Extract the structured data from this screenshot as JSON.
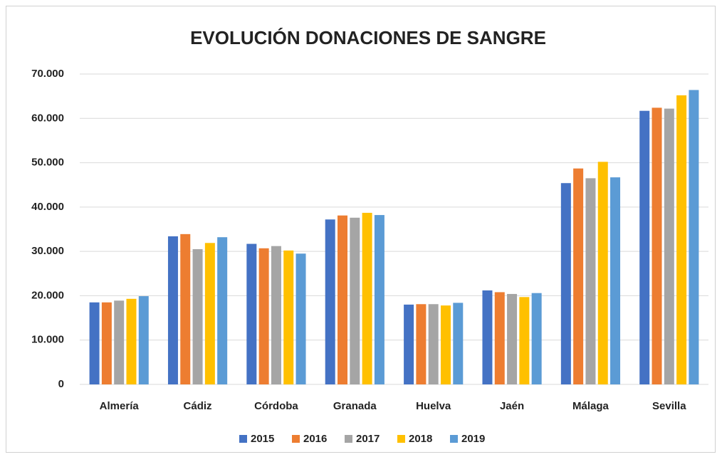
{
  "chart_data": {
    "type": "bar",
    "title": "EVOLUCIÓN DONACIONES DE SANGRE",
    "categories": [
      "Almería",
      "Cádiz",
      "Córdoba",
      "Granada",
      "Huelva",
      "Jaén",
      "Málaga",
      "Sevilla"
    ],
    "series": [
      {
        "name": "2015",
        "color": "#4472c4",
        "values": [
          18500,
          33400,
          31700,
          37200,
          18000,
          21200,
          45400,
          61700
        ]
      },
      {
        "name": "2016",
        "color": "#ed7d31",
        "values": [
          18500,
          33900,
          30700,
          38100,
          18100,
          20800,
          48700,
          62400
        ]
      },
      {
        "name": "2017",
        "color": "#a5a5a5",
        "values": [
          18900,
          30500,
          31200,
          37600,
          18100,
          20400,
          46500,
          62200
        ]
      },
      {
        "name": "2018",
        "color": "#ffc000",
        "values": [
          19300,
          31900,
          30200,
          38700,
          17800,
          19700,
          50200,
          65200
        ]
      },
      {
        "name": "2019",
        "color": "#5b9bd5",
        "values": [
          19900,
          33200,
          29500,
          38200,
          18400,
          20600,
          46700,
          66400
        ]
      }
    ],
    "ylim": [
      0,
      70000
    ],
    "yticks": [
      0,
      {
        "value": 10000,
        "label": "10.000"
      },
      {
        "value": 20000,
        "label": "20.000"
      },
      {
        "value": 30000,
        "label": "30.000"
      },
      {
        "value": 40000,
        "label": "40.000"
      },
      {
        "value": 50000,
        "label": "50.000"
      },
      {
        "value": 60000,
        "label": "60.000"
      },
      {
        "value": 70000,
        "label": "70.000"
      }
    ],
    "grid": true,
    "legend": "bottom"
  }
}
